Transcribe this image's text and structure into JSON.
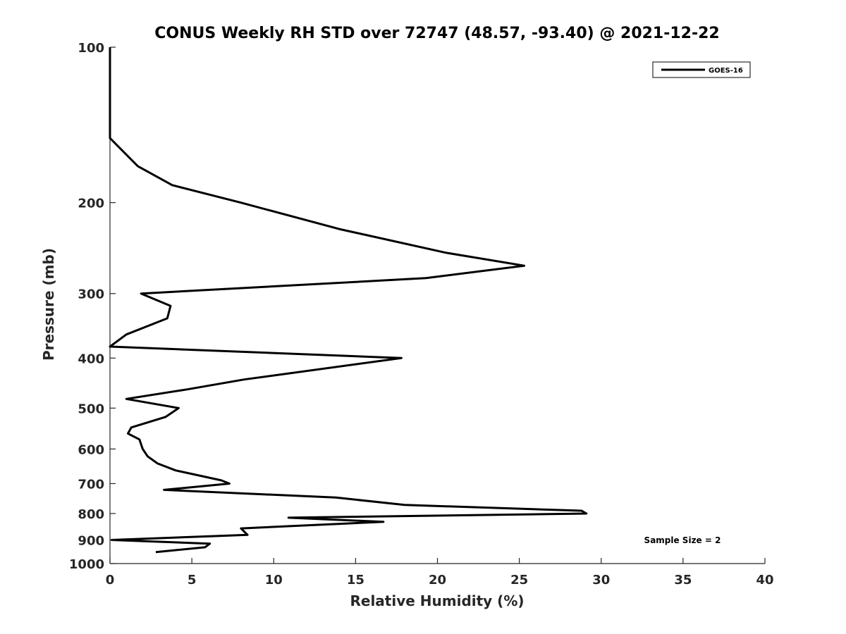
{
  "chart_data": {
    "type": "line",
    "title": "CONUS Weekly RH STD over 72747 (48.57, -93.40) @ 2021-12-22",
    "xlabel": "Relative Humidity (%)",
    "ylabel": "Pressure (mb)",
    "xlim": [
      0,
      40
    ],
    "ylim": [
      100,
      1000
    ],
    "y_scale": "log",
    "y_reversed": true,
    "grid": false,
    "legend_position": "top-right",
    "x_ticks": [
      "0",
      "5",
      "10",
      "15",
      "20",
      "25",
      "30",
      "35",
      "40"
    ],
    "y_ticks": [
      "100",
      "200",
      "300",
      "400",
      "500",
      "600",
      "700",
      "800",
      "900",
      "1000"
    ],
    "annotation": "Sample Size = 2",
    "series": [
      {
        "name": "GOES-16",
        "color": "#000000",
        "points": [
          [
            0.0,
            100
          ],
          [
            0.0,
            150
          ],
          [
            1.7,
            170
          ],
          [
            3.8,
            185
          ],
          [
            8.0,
            200
          ],
          [
            14.0,
            225
          ],
          [
            20.5,
            250
          ],
          [
            25.3,
            265
          ],
          [
            19.3,
            280
          ],
          [
            1.9,
            300
          ],
          [
            3.7,
            317
          ],
          [
            3.5,
            335
          ],
          [
            1.0,
            360
          ],
          [
            0.0,
            380
          ],
          [
            17.8,
            400
          ],
          [
            8.2,
            440
          ],
          [
            4.7,
            460
          ],
          [
            1.0,
            480
          ],
          [
            4.2,
            500
          ],
          [
            3.4,
            520
          ],
          [
            1.3,
            545
          ],
          [
            1.1,
            560
          ],
          [
            1.8,
            575
          ],
          [
            2.0,
            600
          ],
          [
            2.3,
            620
          ],
          [
            2.9,
            640
          ],
          [
            4.0,
            660
          ],
          [
            6.8,
            690
          ],
          [
            7.3,
            700
          ],
          [
            3.3,
            720
          ],
          [
            13.8,
            745
          ],
          [
            18.0,
            770
          ],
          [
            28.8,
            790
          ],
          [
            29.1,
            800
          ],
          [
            10.9,
            815
          ],
          [
            16.7,
            830
          ],
          [
            8.0,
            855
          ],
          [
            8.4,
            880
          ],
          [
            0.1,
            900
          ],
          [
            6.1,
            915
          ],
          [
            5.8,
            930
          ],
          [
            2.8,
            950
          ]
        ]
      }
    ]
  }
}
